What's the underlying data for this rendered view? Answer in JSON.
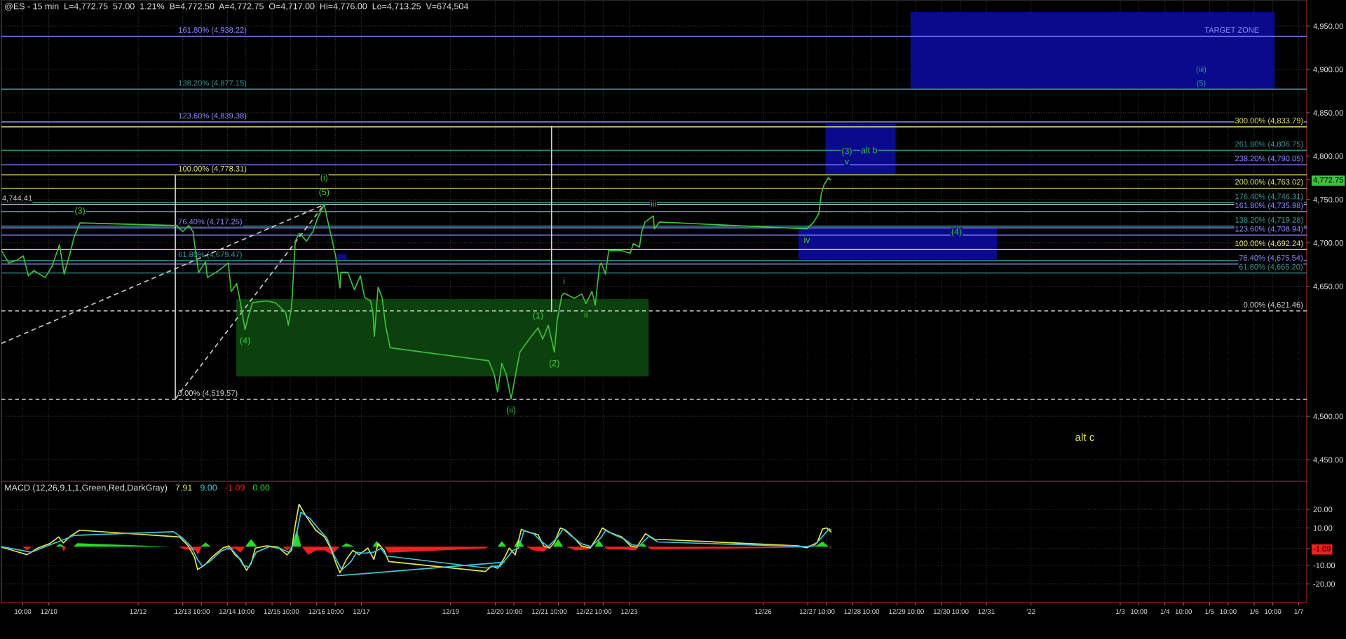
{
  "chart_data": [
    {
      "type": "line",
      "title": "@ES - 15 min  L=4,772.75  57.00  1.21%  B=4,772.50  A=4,772.75  O=4,717.00  Hi=4,776.00  Lo=4,713.25  V=674,504",
      "xlim": [
        "2021-12-08T22:30",
        "2022-01-07T04:15"
      ],
      "xticks": [
        {
          "value": "2021-12-09T10:00",
          "label": null
        },
        {
          "value": "2021-12-10",
          "label": null
        },
        {
          "value": "2021-12-12",
          "label": null
        },
        {
          "value": "2021-12-13",
          "label": null
        },
        {
          "value": "2021-12-13T10:00",
          "label": null
        },
        {
          "value": "2021-12-14",
          "label": null
        },
        {
          "value": "2021-12-14T10:00",
          "label": null
        },
        {
          "value": "2021-12-15",
          "label": null
        },
        {
          "value": "2021-12-15T10:00",
          "label": null
        },
        {
          "value": "2021-12-16",
          "label": null
        },
        {
          "value": "2021-12-16T10:00",
          "label": null
        },
        {
          "value": "2021-12-17",
          "label": null
        },
        {
          "value": "2021-12-19",
          "label": null
        },
        {
          "value": "2021-12-20",
          "label": null
        },
        {
          "value": "2021-12-20T10:00",
          "label": null
        },
        {
          "value": "2021-12-21",
          "label": null
        },
        {
          "value": "2021-12-21T10:00",
          "label": null
        },
        {
          "value": "2021-12-22",
          "label": null
        },
        {
          "value": "2021-12-22T10:00",
          "label": null
        },
        {
          "value": "2021-12-23",
          "label": null
        },
        {
          "value": "2021-12-26",
          "label": null
        },
        {
          "value": "2021-12-27",
          "label": null
        },
        {
          "value": "2021-12-27T10:00",
          "label": null
        },
        {
          "value": "2021-12-28",
          "label": null
        },
        {
          "value": "2021-12-28T10:00",
          "label": null
        },
        {
          "value": "2021-12-29",
          "label": null
        },
        {
          "value": "2021-12-29T10:00",
          "label": null
        },
        {
          "value": "2021-12-30",
          "label": null
        },
        {
          "value": "2021-12-30T10:00",
          "label": null
        },
        {
          "value": "2021-12-31",
          "label": null
        },
        {
          "value": "2022",
          "label": null
        },
        {
          "value": "2022-01-03",
          "label": null
        },
        {
          "value": "2022-01-03T10:00",
          "label": null
        },
        {
          "value": "2022-01-04",
          "label": null
        },
        {
          "value": "2022-01-04T10:00",
          "label": null
        },
        {
          "value": "2022-01-05",
          "label": null
        },
        {
          "value": "2022-01-05T10:00",
          "label": null
        },
        {
          "value": "2022-01-06",
          "label": null
        },
        {
          "value": "2022-01-06T10:00",
          "label": null
        },
        {
          "value": "2022-01-07",
          "label": null
        }
      ],
      "ylim": [
        4425,
        4980
      ],
      "yticks": [
        {
          "value": 4450,
          "label": "4,450.00"
        },
        {
          "value": 4500,
          "label": "4,500.00"
        },
        {
          "value": 4650,
          "label": "4,650.00"
        },
        {
          "value": 4700,
          "label": "4,700.00"
        },
        {
          "value": 4750,
          "label": "4,750.00"
        },
        {
          "value": 4772.75,
          "label": "4,772.75"
        },
        {
          "value": 4800,
          "label": "4,800.00"
        },
        {
          "value": 4850,
          "label": "4,850.00"
        },
        {
          "value": 4900,
          "label": "4,900.00"
        },
        {
          "value": 4950,
          "label": "4,950.00"
        }
      ],
      "tick_labels": "y",
      "grid": true,
      "series": [
        {
          "color": "#0c400c",
          "x": [
            "2021-12-14T04:45",
            "2021-12-23T10:30"
          ],
          "values": [
            null,
            null
          ],
          "lower": [
            4546,
            4546
          ],
          "upper": [
            4635,
            4635
          ]
        },
        {
          "color": "#0a0a8c",
          "x": [
            "2021-12-16T11:00",
            "2021-12-16T16:00"
          ],
          "values": [
            null,
            null
          ],
          "lower": [
            4680,
            4680
          ],
          "upper": [
            4687,
            4687
          ]
        },
        {
          "color": "#0a0a8c",
          "x": [
            "2021-12-27T09:30",
            "2021-12-28T23:15"
          ],
          "values": [
            null,
            null
          ],
          "lower": [
            4779,
            4779
          ],
          "upper": [
            4837,
            4837
          ]
        },
        {
          "color": "#0a0a8c",
          "x": [
            "2021-12-26T19:00",
            "2021-12-31T05:45"
          ],
          "values": [
            null,
            null
          ],
          "lower": [
            4681,
            4681
          ],
          "upper": [
            4717,
            4717
          ]
        },
        {
          "color": "#0a0a8c",
          "x": [
            "2021-12-29T07:15",
            "2022-01-06T11:00"
          ],
          "values": [
            null,
            null
          ],
          "lower": [
            4877,
            4877
          ],
          "upper": [
            4966,
            4966
          ]
        },
        {
          "color": "#d2d2d2",
          "x": [
            "2021-12-12T20:00",
            "2021-12-12T20:00"
          ],
          "values": [
            4520,
            4778
          ]
        },
        {
          "color": "#d2d2d2",
          "x": [
            "2021-12-21T06:15",
            "2021-12-21T06:15"
          ],
          "values": [
            4621,
            4834
          ]
        },
        {
          "color": "#c8c8c8",
          "line_style": "dashed",
          "x": [
            "2021-12-08T22:30",
            "2021-12-16T04:00"
          ],
          "values": [
            4584,
            4744
          ]
        },
        {
          "color": "#c8c8c8",
          "line_style": "dashed",
          "x": [
            "2021-12-12T20:00",
            "2021-12-16T04:00"
          ],
          "values": [
            4520,
            4744
          ]
        },
        {
          "color": "#3fbf3f",
          "x": [
            "2021-12-08T22:30",
            "2021-12-09T02:30",
            "2021-12-09T07:00",
            "2021-12-09T10:15",
            "2021-12-09T13:00",
            "2021-12-09T16:00",
            "2021-12-09T22:00",
            "2021-12-10T01:45",
            "2021-12-10T05:45",
            "2021-12-10T08:15",
            "2021-12-10T11:45",
            "2021-12-10T13:30",
            "2021-12-10T16:45",
            "2021-12-12T20:45",
            "2021-12-13T00:00",
            "2021-12-13T03:15",
            "2021-12-13T05:30",
            "2021-12-13T07:15",
            "2021-12-13T08:30",
            "2021-12-13T12:15",
            "2021-12-13T13:15",
            "2021-12-13T20:00",
            "2021-12-14T00:30",
            "2021-12-14T02:00",
            "2021-12-14T05:00",
            "2021-12-14T07:00",
            "2021-12-14T09:30",
            "2021-12-14T11:00",
            "2021-12-14T13:30",
            "2021-12-14T21:00",
            "2021-12-15T01:45",
            "2021-12-15T07:15",
            "2021-12-15T08:45",
            "2021-12-15T10:30",
            "2021-12-15T12:30",
            "2021-12-15T14:45",
            "2021-12-15T18:30",
            "2021-12-15T22:00",
            "2021-12-16T00:15",
            "2021-12-16T04:00",
            "2021-12-16T05:45",
            "2021-12-16T08:00",
            "2021-12-16T10:15",
            "2021-12-16T12:30",
            "2021-12-16T13:00",
            "2021-12-16T16:45",
            "2021-12-16T20:15",
            "2021-12-16T23:30",
            "2021-12-17T01:45",
            "2021-12-17T05:00",
            "2021-12-17T06:15",
            "2021-12-17T07:00",
            "2021-12-17T09:00",
            "2021-12-17T11:15",
            "2021-12-17T13:00",
            "2021-12-17T15:30",
            "2021-12-19T20:30",
            "2021-12-19T23:30",
            "2021-12-20T01:15",
            "2021-12-20T03:30",
            "2021-12-20T06:00",
            "2021-12-20T08:30",
            "2021-12-20T10:45",
            "2021-12-20T13:15",
            "2021-12-20T18:15",
            "2021-12-20T23:00",
            "2021-12-21T01:30",
            "2021-12-21T04:30",
            "2021-12-21T07:45",
            "2021-12-21T09:15",
            "2021-12-21T11:45",
            "2021-12-21T13:00",
            "2021-12-21T18:30",
            "2021-12-21T22:30",
            "2021-12-22T00:45",
            "2021-12-22T04:00",
            "2021-12-22T05:45",
            "2021-12-22T08:00",
            "2021-12-22T09:00",
            "2021-12-22T11:15",
            "2021-12-22T13:00",
            "2021-12-22T20:00",
            "2021-12-23T00:30",
            "2021-12-23T02:15",
            "2021-12-23T05:30",
            "2021-12-23T06:45",
            "2021-12-23T08:30",
            "2021-12-23T13:00",
            "2021-12-23T13:30",
            "2021-12-23T16:15",
            "2021-12-26T23:30",
            "2021-12-27T03:15",
            "2021-12-27T06:00",
            "2021-12-27T07:15",
            "2021-12-27T08:45",
            "2021-12-27T11:00",
            "2021-12-27T12:15"
          ],
          "values": [
            4691,
            4677,
            4680,
            4685,
            4662,
            4668,
            4660,
            4673,
            4698,
            4664,
            4691,
            4706,
            4723,
            4720,
            4713,
            4720,
            4713,
            4684,
            4666,
            4678,
            4660,
            4669,
            4677,
            4644,
            4653,
            4631,
            4600,
            4613,
            4631,
            4633,
            4631,
            4620,
            4605,
            4626,
            4702,
            4711,
            4702,
            4713,
            4727,
            4744.41,
            4727,
            4706,
            4684,
            4648,
            4666,
            4666,
            4646,
            4662,
            4637,
            4633,
            4619,
            4592,
            4649,
            4636,
            4605,
            4579,
            4564,
            4548,
            4528,
            4561,
            4548,
            4520,
            4546,
            4574,
            4589,
            4602,
            4589,
            4605,
            4574,
            4610,
            4639,
            4642,
            4636,
            4641,
            4630,
            4644,
            4628,
            4673,
            4677,
            4664,
            4691,
            4691,
            4688,
            4699,
            4695,
            4713,
            4724,
            4731,
            4716,
            4724,
            4716,
            4724,
            4734,
            4756,
            4767,
            4775,
            4772.75
          ]
        }
      ],
      "ref_lines": [
        {
          "axis": "y",
          "value": 4938.22,
          "color": "#8c8cff"
        },
        {
          "axis": "y",
          "value": 4877.15,
          "color": "#3c9696"
        },
        {
          "axis": "y",
          "value": 4839.38,
          "color": "#8c8cff"
        },
        {
          "axis": "y",
          "value": 4778.31,
          "color": "#e6e678"
        },
        {
          "axis": "y",
          "value": 4744.41,
          "color": "#c8c8dc"
        },
        {
          "axis": "y",
          "value": 4717.25,
          "color": "#8c8cff"
        },
        {
          "axis": "y",
          "value": 4679.47,
          "color": "#3c9696"
        },
        {
          "axis": "y",
          "value": 4519.57,
          "color": "#d2d2d2",
          "line_style": "dashed"
        },
        {
          "axis": "y",
          "value": 4833.79,
          "color": "#e6e678"
        },
        {
          "axis": "y",
          "value": 4806.75,
          "color": "#3c9696"
        },
        {
          "axis": "y",
          "value": 4790.05,
          "color": "#8c8cff"
        },
        {
          "axis": "y",
          "value": 4763.02,
          "color": "#e6e678"
        },
        {
          "axis": "y",
          "value": 4746.31,
          "color": "#3c9696"
        },
        {
          "axis": "y",
          "value": 4735.98,
          "color": "#8c8cff"
        },
        {
          "axis": "y",
          "value": 4719.28,
          "color": "#3c9696"
        },
        {
          "axis": "y",
          "value": 4708.94,
          "color": "#8c8cff"
        },
        {
          "axis": "y",
          "value": 4692.24,
          "color": "#e6e678"
        },
        {
          "axis": "y",
          "value": 4675.54,
          "color": "#8c8cff"
        },
        {
          "axis": "y",
          "value": 4665.2,
          "color": "#3c9696"
        },
        {
          "axis": "y",
          "value": 4621.46,
          "color": "#d2d2d2",
          "line_style": "dashed"
        }
      ],
      "annotations": [
        {
          "text": "161.80% (4,938.22)",
          "x": "2021-12-13T16:00",
          "y": 4938.22
        },
        {
          "text": "138.20% (4,877.15)",
          "x": "2021-12-13T16:00",
          "y": 4877.15
        },
        {
          "text": "123.60% (4,839.38)",
          "x": "2021-12-13T16:00",
          "y": 4839.38
        },
        {
          "text": "100.00% (4,778.31)",
          "x": "2021-12-13T16:00",
          "y": 4778.31
        },
        {
          "text": "4,744.41",
          "x": "2021-12-09T07:00",
          "y": 4744.41
        },
        {
          "text": "76.40% (4,717.25)",
          "x": "2021-12-13T14:45",
          "y": 4717.25
        },
        {
          "text": "61.80% (4,679.47)",
          "x": "2021-12-13T14:45",
          "y": 4679.47
        },
        {
          "text": "0.00% (4,519.57)",
          "x": "2021-12-13T13:30",
          "y": 4519.57
        },
        {
          "text": "300.00% (4,833.79)",
          "x": "2022-01-06T08:00",
          "y": 4833.79
        },
        {
          "text": "261.80% (4,806.75)",
          "x": "2022-01-06T08:00",
          "y": 4806.75
        },
        {
          "text": "238.20% (4,790.05)",
          "x": "2022-01-06T08:00",
          "y": 4790.05
        },
        {
          "text": "200.00% (4,763.02)",
          "x": "2022-01-06T08:00",
          "y": 4763.02
        },
        {
          "text": "176.40% (4,746.31)",
          "x": "2022-01-06T08:00",
          "y": 4746.31
        },
        {
          "text": "161.80% (4,735.98)",
          "x": "2022-01-06T08:00",
          "y": 4735.98
        },
        {
          "text": "138.20% (4,719.28)",
          "x": "2022-01-06T08:00",
          "y": 4719.28
        },
        {
          "text": "123.60% (4,708.94)",
          "x": "2022-01-06T08:00",
          "y": 4708.94
        },
        {
          "text": "100.00% (4,692.24)",
          "x": "2022-01-06T08:00",
          "y": 4692.24
        },
        {
          "text": "76.40% (4,675.54)",
          "x": "2022-01-06T09:00",
          "y": 4675.54
        },
        {
          "text": "61.80% (4,665.20)",
          "x": "2022-01-06T09:00",
          "y": 4665.2
        },
        {
          "text": "0.00% (4,621.46)",
          "x": "2022-01-06T10:15",
          "y": 4621.46
        },
        {
          "text": "(3)",
          "x": "2021-12-10T16:45",
          "y": 4723
        },
        {
          "text": "(5)",
          "x": "2021-12-16T04:00",
          "y": 4744.41
        },
        {
          "text": "(i)",
          "x": "2021-12-16T04:00",
          "y": 4744.41
        },
        {
          "text": "(4)",
          "x": "2021-12-14T09:30",
          "y": 4600
        },
        {
          "text": "(ii)",
          "x": "2021-12-20T08:30",
          "y": 4520
        },
        {
          "text": "(1)",
          "x": "2021-12-20T23:00",
          "y": 4602
        },
        {
          "text": "(2)",
          "x": "2021-12-21T07:45",
          "y": 4574
        },
        {
          "text": "i",
          "x": "2021-12-21T13:00",
          "y": 4642
        },
        {
          "text": "ii",
          "x": "2021-12-22T00:45",
          "y": 4630
        },
        {
          "text": "iii",
          "x": "2021-12-23T13:00",
          "y": 4731
        },
        {
          "text": "iv",
          "x": "2021-12-26T23:30",
          "y": 4716
        },
        {
          "text": "(3)",
          "x": "2021-12-27T21:00",
          "y": 4805
        },
        {
          "text": "v",
          "x": "2021-12-27T21:00",
          "y": 4793
        },
        {
          "text": "alt b",
          "x": "2021-12-28T09:00",
          "y": 4806
        },
        {
          "text": "(4)",
          "x": "2021-12-30T08:00",
          "y": 4712
        },
        {
          "text": "TARGET ZONE",
          "x": "2022-01-05T12:00",
          "y": 4938.22
        },
        {
          "text": "(5)",
          "x": "2022-01-04T19:30",
          "y": 4877.15
        },
        {
          "text": "(iii)",
          "x": "2022-01-04T19:30",
          "y": 4877.15
        },
        "alt c"
      ]
    },
    {
      "type": "line",
      "title": "MACD (12,26,9,1,1,Green,Red,DarkGray)",
      "xlim": [
        "2021-12-08T22:30",
        "2022-01-07T04:15"
      ],
      "xticks": [
        {
          "value": "2021-12-09T10:00",
          "label": "10:00"
        },
        {
          "value": "2021-12-10",
          "label": "12/10"
        },
        {
          "value": "2021-12-12",
          "label": "12/12"
        },
        {
          "value": "2021-12-13",
          "label": "12/13"
        },
        {
          "value": "2021-12-13T10:00",
          "label": "10:00"
        },
        {
          "value": "2021-12-14",
          "label": "12/14"
        },
        {
          "value": "2021-12-14T10:00",
          "label": "10:00"
        },
        {
          "value": "2021-12-15",
          "label": "12/15"
        },
        {
          "value": "2021-12-15T10:00",
          "label": "10:00"
        },
        {
          "value": "2021-12-16",
          "label": "12/16"
        },
        {
          "value": "2021-12-16T10:00",
          "label": "10:00"
        },
        {
          "value": "2021-12-17",
          "label": "12/17"
        },
        {
          "value": "2021-12-19",
          "label": "12/19"
        },
        {
          "value": "2021-12-20",
          "label": "12/20"
        },
        {
          "value": "2021-12-20T10:00",
          "label": "10:00"
        },
        {
          "value": "2021-12-21",
          "label": "12/21"
        },
        {
          "value": "2021-12-21T10:00",
          "label": "10:00"
        },
        {
          "value": "2021-12-22",
          "label": "12/22"
        },
        {
          "value": "2021-12-22T10:00",
          "label": "10:00"
        },
        {
          "value": "2021-12-23",
          "label": "12/23"
        },
        {
          "value": "2021-12-26",
          "label": "12/26"
        },
        {
          "value": "2021-12-27",
          "label": "12/27"
        },
        {
          "value": "2021-12-27T10:00",
          "label": "10:00"
        },
        {
          "value": "2021-12-28",
          "label": "12/28"
        },
        {
          "value": "2021-12-28T10:00",
          "label": "10:00"
        },
        {
          "value": "2021-12-29",
          "label": "12/29"
        },
        {
          "value": "2021-12-29T10:00",
          "label": "10:00"
        },
        {
          "value": "2021-12-30",
          "label": "12/30"
        },
        {
          "value": "2021-12-30T10:00",
          "label": "10:00"
        },
        {
          "value": "2021-12-31",
          "label": "12/31"
        },
        {
          "value": "2022",
          "label": "'22"
        },
        {
          "value": "2022-01-03",
          "label": "1/3"
        },
        {
          "value": "2022-01-03T10:00",
          "label": "10:00"
        },
        {
          "value": "2022-01-04",
          "label": "1/4"
        },
        {
          "value": "2022-01-04T10:00",
          "label": "10:00"
        },
        {
          "value": "2022-01-05",
          "label": "1/5"
        },
        {
          "value": "2022-01-05T10:00",
          "label": "10:00"
        },
        {
          "value": "2022-01-06",
          "label": "1/6"
        },
        {
          "value": "2022-01-06T10:00",
          "label": "10:00"
        },
        {
          "value": "2022-01-07",
          "label": "1/7"
        }
      ],
      "ylim": [
        -30,
        35
      ],
      "yticks": [
        {
          "value": 20,
          "label": "20.00"
        },
        {
          "value": 10,
          "label": "10.00"
        },
        {
          "value": -1.09,
          "label": "-1.09"
        },
        {
          "value": -10,
          "label": "-10.00"
        },
        {
          "value": -20,
          "label": "-20.00"
        }
      ],
      "grid": true,
      "legend": "top left",
      "series": [
        {
          "name": "7.91",
          "color": "#e6e64c",
          "x": [
            "2021-12-08T22:30",
            "2021-12-09T04:30",
            "2021-12-09T12:15",
            "2021-12-09T18:00",
            "2021-12-10T00:30",
            "2021-12-10T05:15",
            "2021-12-10T07:45",
            "2021-12-10T11:45",
            "2021-12-10T16:30",
            "2021-12-12T22:15",
            "2021-12-13T03:00",
            "2021-12-13T06:15",
            "2021-12-13T08:00",
            "2021-12-13T11:45",
            "2021-12-13T15:45",
            "2021-12-13T21:30",
            "2021-12-14T00:45",
            "2021-12-14T04:00",
            "2021-12-14T07:00",
            "2021-12-14T10:15",
            "2021-12-14T12:45",
            "2021-12-14T15:00",
            "2021-12-14T21:00",
            "2021-12-15T03:15",
            "2021-12-15T08:00",
            "2021-12-15T10:30",
            "2021-12-15T12:00",
            "2021-12-15T14:30",
            "2021-12-15T18:30",
            "2021-12-15T23:30",
            "2021-12-16T04:15",
            "2021-12-16T07:30",
            "2021-12-16T10:30",
            "2021-12-16T12:30",
            "2021-12-16T16:00",
            "2021-12-16T19:30",
            "2021-12-16T22:45",
            "2021-12-17T03:30",
            "2021-12-17T06:45",
            "2021-12-17T09:00",
            "2021-12-17T12:15",
            "2021-12-17T14:45",
            "2021-12-19T18:45",
            "2021-12-19T22:00",
            "2021-12-20T01:15",
            "2021-12-20T04:30",
            "2021-12-20T07:30",
            "2021-12-20T10:45",
            "2021-12-20T14:00",
            "2021-12-20T18:15",
            "2021-12-20T23:00",
            "2021-12-21T02:00",
            "2021-12-21T05:15",
            "2021-12-21T07:45",
            "2021-12-21T11:00",
            "2021-12-21T14:00",
            "2021-12-21T19:00",
            "2021-12-21T22:15",
            "2021-12-22T03:00",
            "2021-12-22T07:45",
            "2021-12-22T09:30",
            "2021-12-22T13:30",
            "2021-12-22T20:00",
            "2021-12-23T00:45",
            "2021-12-23T04:00",
            "2021-12-23T08:45",
            "2021-12-23T13:30",
            "2021-12-26T19:00",
            "2021-12-26T23:30",
            "2021-12-27T05:00",
            "2021-12-27T08:00",
            "2021-12-27T10:15",
            "2021-12-27T12:30"
          ],
          "values": [
            -0.3,
            -2,
            -4.3,
            -0.8,
            1.6,
            5.2,
            2,
            5.7,
            8.8,
            5.2,
            0.4,
            -5.6,
            -12.3,
            -9.9,
            -5.6,
            -0.8,
            0.4,
            -4.4,
            -6.8,
            -12.7,
            -9.2,
            -0.8,
            0.4,
            -0.3,
            -4.4,
            -2,
            8.8,
            22.7,
            16,
            8.8,
            5.2,
            -0.8,
            -9.2,
            -14,
            -6.8,
            -2,
            -4.4,
            -0.8,
            -6.8,
            1.6,
            -2,
            -8,
            -13.3,
            -10.4,
            -11.6,
            -6.8,
            -0.8,
            -4.4,
            9.3,
            7.6,
            6.4,
            0.4,
            -0.8,
            2.1,
            10,
            8.8,
            4,
            0.4,
            -0.8,
            6.4,
            10,
            7.6,
            5.2,
            0.4,
            -0.3,
            6.9,
            4,
            0.4,
            -0.6,
            2.1,
            9.5,
            10,
            7.91
          ]
        },
        {
          "name": "9.00",
          "color": "#40c8d8",
          "x": [
            "2021-12-08T22:30",
            "2021-12-09T06:30",
            "2021-12-09T14:30",
            "2021-12-09T23:30",
            "2021-12-10T07:30",
            "2021-12-10T13:30",
            "2021-12-12T19:00",
            "2021-12-12T23:30",
            "2021-12-13T04:30",
            "2021-12-13T08:00",
            "2021-12-13T10:30",
            "2021-12-13T14:30",
            "2021-12-13T20:30",
            "2021-12-14T01:30",
            "2021-12-14T05:30",
            "2021-12-14T08:30",
            "2021-12-14T11:30",
            "2021-12-14T15:30",
            "2021-12-14T22:30",
            "2021-12-15T04:30",
            "2021-12-15T09:00",
            "2021-12-15T12:30",
            "2021-12-15T15:30",
            "2021-12-15T20:30",
            "2021-12-16T01:30",
            "2021-12-16T05:30",
            "2021-12-16T09:30",
            "2021-12-16T13:30",
            "2021-12-16T18:30",
            "2021-12-16T21:30",
            "2021-12-17T01:30",
            "2021-12-17T06:30",
            "2021-12-17T10:30",
            "2021-12-17T13:30",
            "2021-12-19T19:30",
            "2021-12-19T23:30",
            "2021-12-20T02:30",
            "2021-12-20T05:30",
            "2021-12-20T09:30",
            "2021-12-20T12:30",
            "2021-12-20T15:30",
            "2021-12-20T20:30",
            "2021-12-21T00:30",
            "2021-12-21T04:30",
            "2021-12-21T09:30",
            "2021-12-21T12:30",
            "2021-12-21T16:30",
            "2021-12-21T22:30",
            "2021-12-22T03:30",
            "2021-12-22T09:00",
            "2021-12-22T11:30",
            "2021-12-22T15:30",
            "2021-12-22T21:30",
            "2021-12-23T01:30",
            "2021-12-23T05:30",
            "2021-12-23T10:30",
            "2021-12-23T15:30",
            "2021-12-26T22:30",
            "2021-12-27T03:30",
            "2021-12-27T07:30",
            "2021-12-27T11:30",
            "2021-12-27T12:30"
          ],
          "values": [
            0,
            -1.5,
            -3,
            0.5,
            3.5,
            6,
            8,
            5,
            0,
            -7,
            -10.5,
            -8,
            -2.5,
            -0.5,
            -5,
            -10,
            -11,
            -3,
            0,
            -1,
            -3,
            3,
            18.5,
            15,
            9,
            4.5,
            -5,
            -12.5,
            -8,
            -3,
            -3.5,
            -3,
            -1,
            -5,
            -11.5,
            -10.5,
            -10.5,
            -7,
            -2,
            -1,
            8.5,
            7,
            3,
            0,
            5,
            9.5,
            6,
            1.5,
            0,
            5,
            9,
            6.5,
            4,
            1,
            0.5,
            5.5,
            2.5,
            0,
            0.5,
            5,
            9.5,
            9
          ]
        },
        {
          "name": "-1.09",
          "type": "area",
          "color": "#ee2020",
          "x": [
            "2021-12-09T10:00",
            "2021-12-09T12:15",
            "2021-12-09T14:45",
            "2021-12-10T07:00",
            "2021-12-10T08:00",
            "2021-12-10T09:15",
            "2021-12-12T21:30",
            "2021-12-13T01:30",
            "2021-12-13T07:00",
            "2021-12-13T08:00",
            "2021-12-13T10:15",
            "2021-12-13T21:30",
            "2021-12-14T00:45",
            "2021-12-14T04:00",
            "2021-12-14T07:00",
            "2021-12-14T09:30",
            "2021-12-15T05:45",
            "2021-12-15T08:00",
            "2021-12-15T10:30",
            "2021-12-15T16:00",
            "2021-12-15T19:30",
            "2021-12-15T23:30",
            "2021-12-16T04:15",
            "2021-12-16T08:15",
            "2021-12-16T12:15",
            "2021-12-17T12:15",
            "2021-12-17T14:45",
            "2021-12-19T18:45",
            "2021-12-19T20:30",
            "2021-12-20T16:30",
            "2021-12-20T20:30",
            "2021-12-21T02:00",
            "2021-12-21T05:15",
            "2021-12-21T14:00",
            "2021-12-21T19:00",
            "2021-12-22T01:30",
            "2021-12-22T04:45",
            "2021-12-22T10:15",
            "2021-12-22T12:30",
            "2021-12-22T21:30",
            "2021-12-23T03:15",
            "2021-12-23T05:30",
            "2021-12-23T09:30",
            "2021-12-23T12:00",
            "2021-12-23T15:30",
            "2021-12-26T19:30",
            "2021-12-26T23:30",
            "2021-12-27T02:30",
            "2021-12-27T11:30",
            "2021-12-27T12:30"
          ],
          "values": [
            0,
            -2,
            0,
            0,
            -2.7,
            0,
            0,
            -1.5,
            -2,
            -4.4,
            0,
            0,
            -2,
            -1,
            -3.2,
            0,
            0,
            -2,
            0,
            0,
            -4.4,
            -2,
            -2,
            -4.4,
            0,
            0,
            -3.2,
            -1,
            0,
            0,
            -2,
            -2.7,
            0,
            0,
            -2,
            -1.5,
            0,
            0,
            -1.5,
            -1.5,
            -2,
            0,
            0,
            -1.5,
            -1.5,
            -0.5,
            -0.5,
            0,
            0,
            -1.09
          ]
        },
        {
          "name": "0.00",
          "type": "area",
          "color": "#22dd22",
          "x": [
            "2021-12-10T03:45",
            "2021-12-10T06:00",
            "2021-12-10T08:30",
            "2021-12-10T13:15",
            "2021-12-10T15:15",
            "2021-12-12T18:15",
            "2021-12-13T09:30",
            "2021-12-13T12:15",
            "2021-12-13T15:00",
            "2021-12-14T09:30",
            "2021-12-14T12:45",
            "2021-12-14T16:00",
            "2021-12-15T10:30",
            "2021-12-15T13:15",
            "2021-12-15T15:45",
            "2021-12-16T13:00",
            "2021-12-16T16:00",
            "2021-12-16T20:15",
            "2021-12-17T06:00",
            "2021-12-17T08:15",
            "2021-12-17T11:00",
            "2021-12-20T01:15",
            "2021-12-20T03:30",
            "2021-12-20T06:00",
            "2021-12-20T10:00",
            "2021-12-20T12:30",
            "2021-12-20T15:30",
            "2021-12-21T07:00",
            "2021-12-21T09:45",
            "2021-12-21T12:30",
            "2021-12-22T05:30",
            "2021-12-22T07:45",
            "2021-12-22T10:15",
            "2021-12-23T05:30",
            "2021-12-23T07:30",
            "2021-12-23T09:30",
            "2021-12-27T03:45",
            "2021-12-27T08:00",
            "2021-12-27T11:15"
          ],
          "values": [
            0,
            1.6,
            0,
            0,
            1.8,
            0,
            0,
            2.2,
            0,
            0,
            4,
            0,
            0,
            9,
            0,
            0,
            1.8,
            0,
            0,
            3,
            0,
            0,
            3,
            0,
            0,
            4,
            0,
            0,
            4,
            0,
            0,
            3.5,
            0,
            0,
            1.8,
            0,
            0,
            2.8,
            0
          ]
        },
        {
          "color": "#40c8d8",
          "x": [
            "2021-12-16T11:15",
            "2021-12-20T04:45"
          ],
          "values": [
            -15.6,
            -8.4
          ]
        }
      ]
    }
  ]
}
